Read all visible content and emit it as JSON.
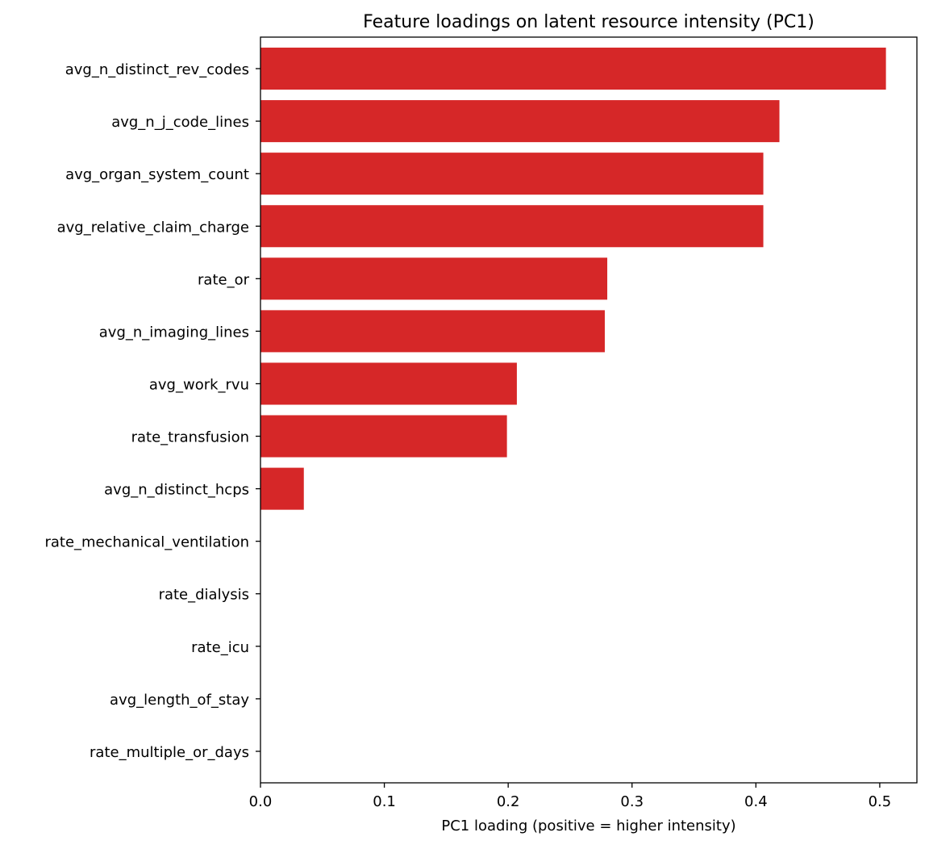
{
  "chart_data": {
    "type": "bar",
    "orientation": "horizontal",
    "title": "Feature loadings on latent resource intensity (PC1)",
    "xlabel": "PC1 loading (positive = higher intensity)",
    "ylabel": "",
    "xlim": [
      0.0,
      0.53
    ],
    "xticks": [
      "0.0",
      "0.1",
      "0.2",
      "0.3",
      "0.4",
      "0.5"
    ],
    "grid": false,
    "bar_color": "#d62728",
    "categories": [
      "avg_n_distinct_rev_codes",
      "avg_n_j_code_lines",
      "avg_organ_system_count",
      "avg_relative_claim_charge",
      "rate_or",
      "avg_n_imaging_lines",
      "avg_work_rvu",
      "rate_transfusion",
      "avg_n_distinct_hcps",
      "rate_mechanical_ventilation",
      "rate_dialysis",
      "rate_icu",
      "avg_length_of_stay",
      "rate_multiple_or_days"
    ],
    "values": [
      0.505,
      0.419,
      0.406,
      0.406,
      0.28,
      0.278,
      0.207,
      0.199,
      0.035,
      0,
      0,
      0,
      0,
      0
    ]
  }
}
